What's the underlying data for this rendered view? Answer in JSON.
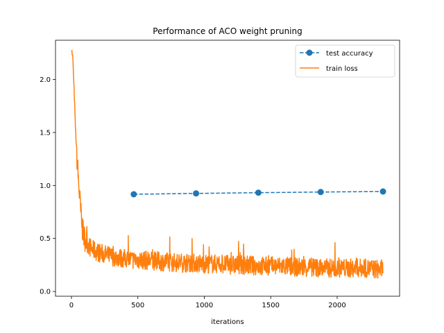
{
  "chart_data": {
    "type": "line",
    "title": "Performance of ACO weight pruning",
    "xlabel": "iterations",
    "ylabel": "",
    "xlim": [
      -120,
      2470
    ],
    "ylim": [
      -0.045,
      2.37
    ],
    "xticks": [
      0,
      500,
      1000,
      1500,
      2000
    ],
    "xtick_labels": [
      "0",
      "500",
      "1000",
      "1500",
      "2000"
    ],
    "yticks": [
      0.0,
      0.5,
      1.0,
      1.5,
      2.0
    ],
    "ytick_labels": [
      "0.0",
      "0.5",
      "1.0",
      "1.5",
      "2.0"
    ],
    "grid": false,
    "legend_position": "top-right",
    "series": [
      {
        "name": "test accuracy",
        "style": "dashed-with-markers",
        "color": "#1f77b4",
        "x": [
          469,
          938,
          1407,
          1876,
          2345
        ],
        "y": [
          0.917,
          0.925,
          0.932,
          0.938,
          0.943
        ]
      },
      {
        "name": "train loss",
        "style": "solid",
        "color": "#ff7f0e",
        "x": [
          0,
          10,
          20,
          30,
          40,
          50,
          60,
          70,
          80,
          90,
          100,
          120,
          150,
          200,
          250,
          300,
          350,
          400,
          450,
          500,
          600,
          700,
          800,
          900,
          1000,
          1100,
          1200,
          1300,
          1400,
          1500,
          1600,
          1700,
          1800,
          1900,
          2000,
          2100,
          2200,
          2300,
          2345
        ],
        "y": [
          2.3,
          2.2,
          1.9,
          1.55,
          1.3,
          1.1,
          0.92,
          0.75,
          0.62,
          0.54,
          0.5,
          0.45,
          0.4,
          0.37,
          0.35,
          0.33,
          0.32,
          0.31,
          0.3,
          0.3,
          0.29,
          0.28,
          0.27,
          0.27,
          0.26,
          0.26,
          0.25,
          0.25,
          0.24,
          0.24,
          0.24,
          0.23,
          0.23,
          0.22,
          0.22,
          0.22,
          0.22,
          0.21,
          0.21
        ]
      }
    ]
  }
}
